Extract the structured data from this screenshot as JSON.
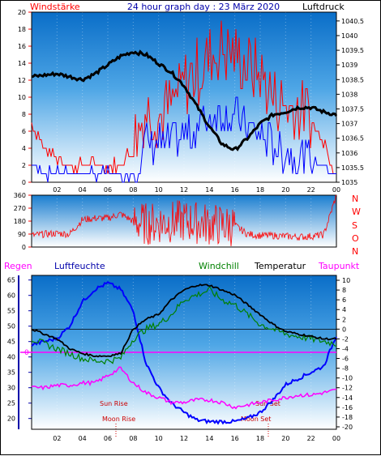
{
  "header": {
    "left_label": "Windstärke",
    "title": "24 hour graph day : 23 März 2020",
    "right_label": "Luftdruck"
  },
  "bottom_header": {
    "regen": "Regen",
    "luftfeuchte": "Luftfeuchte",
    "windchill": "Windchill",
    "temperatur": "Temperatur",
    "taupunkt": "Taupunkt"
  },
  "direction_labels": [
    "N",
    "W",
    "S",
    "O",
    "N"
  ],
  "annotations": {
    "sun_rise": "Sun Rise",
    "moon_rise": "Moon Rise",
    "sun_set": "Sun Set",
    "moon_set": "Moon Set"
  },
  "colors": {
    "wind_gust": "#ff0000",
    "wind_avg": "#0000ff",
    "pressure": "#000000",
    "direction": "#ff0000",
    "humidity": "#0000ff",
    "windchill": "#008000",
    "temperature": "#000000",
    "dewpoint": "#ff00ff",
    "rain_zero_line": "#ff00ff"
  },
  "chart_data": [
    {
      "id": "wind_pressure",
      "type": "line",
      "x_ticks": [
        "02",
        "04",
        "06",
        "08",
        "10",
        "12",
        "14",
        "16",
        "18",
        "20",
        "22",
        "00"
      ],
      "left_axis": {
        "ticks": [
          0,
          2,
          4,
          6,
          8,
          10,
          12,
          14,
          16,
          18,
          20
        ],
        "range": [
          0,
          20
        ]
      },
      "right_axis": {
        "ticks": [
          "1035",
          "1035.5",
          "1036",
          "1036.5",
          "1037",
          "1037.5",
          "1038",
          "1038.5",
          "1039",
          "1039.5",
          "1040",
          "1040.5"
        ],
        "range": [
          1035,
          1040.8
        ]
      },
      "hours": [
        0,
        1,
        2,
        3,
        4,
        5,
        6,
        7,
        8,
        9,
        10,
        11,
        12,
        13,
        14,
        15,
        16,
        17,
        18,
        19,
        20,
        21,
        22,
        23,
        24
      ],
      "pressure": [
        1038.6,
        1038.65,
        1038.7,
        1038.6,
        1038.5,
        1038.7,
        1039.0,
        1039.3,
        1039.45,
        1039.35,
        1039.05,
        1038.75,
        1038.3,
        1037.6,
        1036.9,
        1036.3,
        1036.1,
        1036.5,
        1037.0,
        1037.3,
        1037.4,
        1037.55,
        1037.55,
        1037.4,
        1037.3
      ],
      "wind_gust": [
        7,
        4,
        3,
        2,
        2,
        2,
        2,
        2,
        4,
        8,
        7,
        8,
        11,
        12,
        14,
        15,
        14,
        13,
        12,
        9,
        8,
        8,
        7,
        5,
        1
      ],
      "wind_avg": [
        2,
        1,
        1,
        1,
        1,
        1,
        1,
        1,
        1,
        4,
        4,
        4,
        5,
        6,
        7,
        8,
        7,
        6,
        5,
        4,
        3,
        3,
        2,
        2,
        1
      ]
    },
    {
      "id": "wind_direction",
      "type": "line",
      "x_ticks": [
        "02",
        "04",
        "06",
        "08",
        "10",
        "12",
        "14",
        "16",
        "18",
        "20",
        "22",
        "00"
      ],
      "y_ticks": [
        0,
        90,
        180,
        270,
        360
      ],
      "y_range": [
        0,
        360
      ],
      "hours": [
        0,
        1,
        2,
        3,
        4,
        5,
        6,
        7,
        8,
        9,
        10,
        11,
        12,
        13,
        14,
        15,
        16,
        17,
        18,
        19,
        20,
        21,
        22,
        23,
        24
      ],
      "direction": [
        80,
        90,
        95,
        90,
        190,
        200,
        200,
        230,
        180,
        160,
        170,
        175,
        180,
        170,
        160,
        150,
        150,
        90,
        80,
        80,
        75,
        70,
        75,
        85,
        360
      ]
    },
    {
      "id": "temp_humidity",
      "type": "line",
      "x_ticks": [
        "02",
        "04",
        "06",
        "08",
        "10",
        "12",
        "14",
        "16",
        "18",
        "20",
        "22",
        "00"
      ],
      "left_axis": {
        "ticks": [
          20,
          25,
          30,
          35,
          40,
          45,
          50,
          55,
          60,
          65
        ],
        "range": [
          16.5,
          66.5
        ]
      },
      "right_axis": {
        "ticks": [
          10,
          8,
          6,
          4,
          2,
          0,
          -2,
          -4,
          -6,
          -8,
          -10,
          -12,
          -14,
          -16,
          -18,
          -20
        ],
        "range": [
          -20.5,
          11
        ]
      },
      "rain_zero_label": "0",
      "hours": [
        0,
        1,
        2,
        3,
        4,
        5,
        6,
        7,
        8,
        9,
        10,
        11,
        12,
        13,
        14,
        15,
        16,
        17,
        18,
        19,
        20,
        21,
        22,
        23,
        24
      ],
      "humidity": [
        44,
        45,
        46,
        50,
        58,
        62,
        64,
        62,
        55,
        38,
        30,
        25,
        22,
        19.5,
        19,
        19,
        19,
        20,
        22,
        26,
        31,
        33,
        35,
        37,
        47
      ],
      "temperature": [
        0,
        -1,
        -2,
        -4,
        -5,
        -5.5,
        -5.5,
        -5,
        0,
        2,
        3,
        6,
        8,
        9,
        9,
        8,
        7,
        5,
        3,
        1,
        -0.5,
        -1,
        -1.5,
        -2,
        -2
      ],
      "windchill": [
        -2,
        -3,
        -4,
        -5,
        -6,
        -6.5,
        -6.5,
        -6,
        -2,
        0,
        1,
        3,
        6,
        7,
        8,
        6,
        5,
        3,
        1,
        0,
        -1,
        -1.5,
        -2,
        -2.5,
        -3
      ],
      "dewpoint": [
        -12,
        -12,
        -11.5,
        -11.5,
        -11,
        -11,
        -9.5,
        -8,
        -11,
        -13,
        -14,
        -15,
        -15,
        -14.5,
        -14.5,
        -15,
        -16,
        -15.5,
        -15,
        -14.5,
        -14,
        -13.5,
        -13.5,
        -13,
        -12.5
      ]
    }
  ]
}
